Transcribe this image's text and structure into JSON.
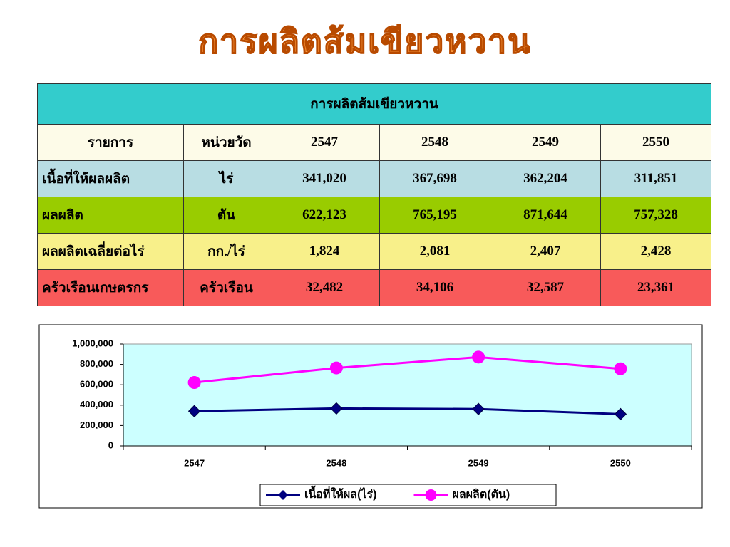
{
  "title": "การผลิตส้มเขียวหวาน",
  "table": {
    "title": "การผลิตส้มเขียวหวาน",
    "header": [
      "รายการ",
      "หน่วยวัด",
      "2547",
      "2548",
      "2549",
      "2550"
    ],
    "rows": [
      [
        "เนื้อที่ให้ผลผลิต",
        "ไร่",
        "341,020",
        "367,698",
        "362,204",
        "311,851"
      ],
      [
        "ผลผลิต",
        "ตัน",
        "622,123",
        "765,195",
        "871,644",
        "757,328"
      ],
      [
        "ผลผลิตเฉลี่ยต่อไร่",
        "กก./ไร่",
        "1,824",
        "2,081",
        "2,407",
        "2,428"
      ],
      [
        "ครัวเรือนเกษตรกร",
        "ครัวเรือน",
        "32,482",
        "34,106",
        "32,587",
        "23,361"
      ]
    ]
  },
  "chart_data": {
    "type": "line",
    "categories": [
      "2547",
      "2548",
      "2549",
      "2550"
    ],
    "series": [
      {
        "name": "เนื้อที่ให้ผล(ไร่)",
        "color": "#000080",
        "marker": "diamond",
        "values": [
          341020,
          367698,
          362204,
          311851
        ]
      },
      {
        "name": "ผลผลิต(ตัน)",
        "color": "#ff00ff",
        "marker": "circle",
        "values": [
          622123,
          765195,
          871644,
          757328
        ]
      }
    ],
    "ylim": [
      0,
      1000000
    ],
    "yticks": [
      0,
      {
        "value": 200000,
        "label": "200,000"
      },
      {
        "value": 400000,
        "label": "400,000"
      },
      {
        "value": 600000,
        "label": "600,000"
      },
      {
        "value": 800000,
        "label": "800,000"
      },
      {
        "value": 1000000,
        "label": "1,000,000"
      }
    ],
    "legend": "bottom",
    "background": "#ccffff"
  }
}
